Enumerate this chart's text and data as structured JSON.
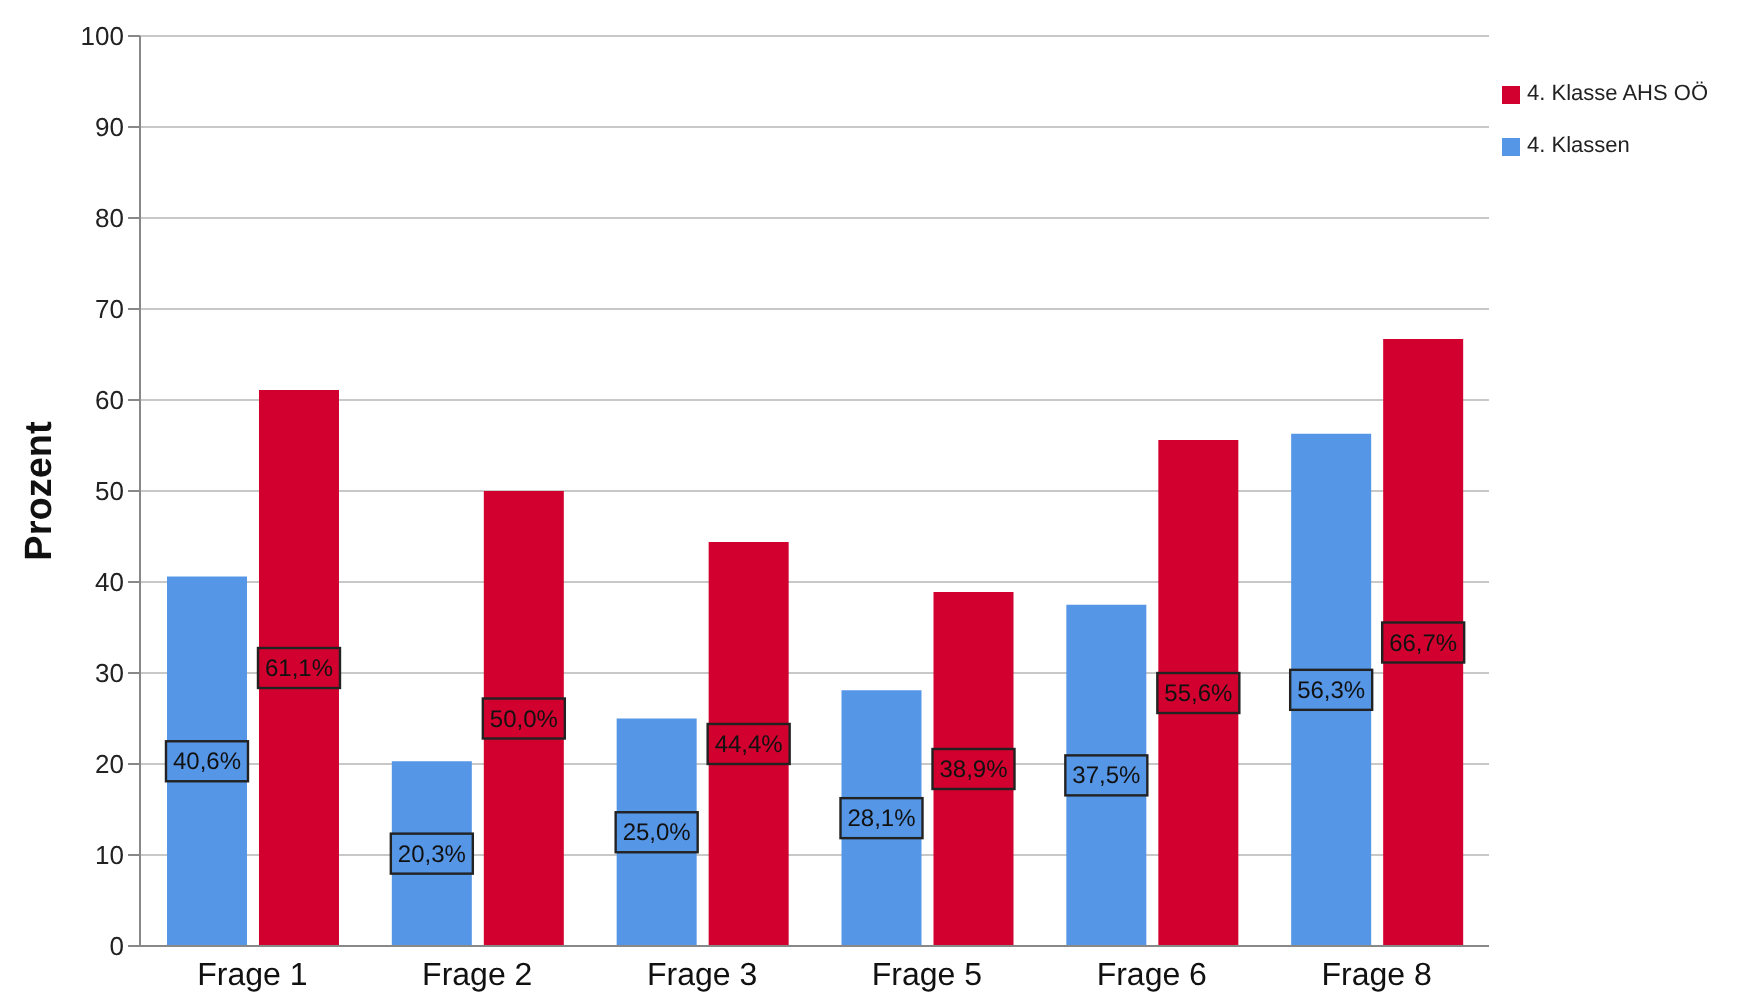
{
  "chart_data": {
    "type": "bar",
    "ylabel": "Prozent",
    "categories": [
      "Frage 1",
      "Frage 2",
      "Frage 3",
      "Frage 5",
      "Frage 6",
      "Frage 8"
    ],
    "series": [
      {
        "name": "4. Klassen",
        "color": "#5596e6",
        "values": [
          40.6,
          20.3,
          25.0,
          28.1,
          37.5,
          56.3
        ],
        "value_labels": [
          "40,6%",
          "20,3%",
          "25,0%",
          "28,1%",
          "37,5%",
          "56,3%"
        ]
      },
      {
        "name": "4. Klasse AHS OÖ",
        "color": "#d1002e",
        "values": [
          61.1,
          50.0,
          44.4,
          38.9,
          55.6,
          66.7
        ],
        "value_labels": [
          "61,1%",
          "50,0%",
          "44,4%",
          "38,9%",
          "55,6%",
          "66,7%"
        ]
      }
    ],
    "ylim": [
      0,
      100
    ],
    "yticks": [
      0,
      10,
      20,
      30,
      40,
      50,
      60,
      70,
      80,
      90,
      100
    ],
    "grid": "y",
    "legend": "top right"
  }
}
